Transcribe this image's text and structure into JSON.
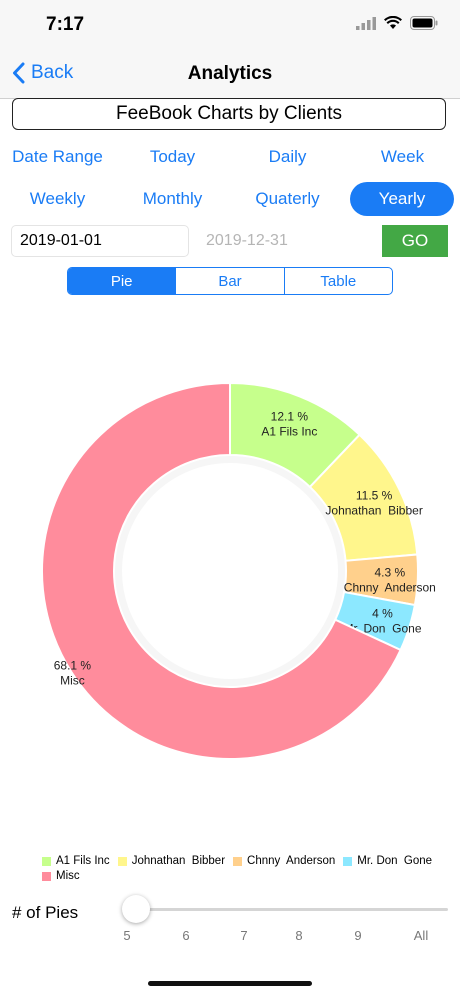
{
  "status": {
    "time": "7:17"
  },
  "nav": {
    "back_label": "Back",
    "title": "Analytics"
  },
  "title_box": "FeeBook Charts by Clients",
  "ranges": {
    "row1": [
      "Date Range",
      "Today",
      "Daily",
      "Week"
    ],
    "row2": [
      "Weekly",
      "Monthly",
      "Quaterly",
      "Yearly"
    ],
    "selected": "Yearly"
  },
  "dates": {
    "start_value": "2019-01-01",
    "end_placeholder": "2019-12-31",
    "go_label": "GO"
  },
  "segments": {
    "items": [
      "Pie",
      "Bar",
      "Table"
    ],
    "selected": "Pie"
  },
  "chart_data": {
    "type": "pie",
    "donut": true,
    "slices": [
      {
        "label": "A1 Fils Inc",
        "percent": 12.1,
        "color": "#c6ff8c"
      },
      {
        "label": "Johnathan  Bibber",
        "percent": 11.5,
        "color": "#fff68c"
      },
      {
        "label": "Chnny  Anderson",
        "percent": 4.3,
        "color": "#ffd08c"
      },
      {
        "label": "Mr. Don  Gone",
        "percent": 4.0,
        "color": "#8ce8ff"
      },
      {
        "label": "Misc",
        "percent": 68.1,
        "color": "#ff8c9c"
      }
    ],
    "legend_position": "bottom-left"
  },
  "slider": {
    "label": "# of Pies",
    "ticks": [
      "5",
      "6",
      "7",
      "8",
      "9",
      "All"
    ],
    "value": "5"
  },
  "colors": {
    "accent": "#1a7cf5",
    "go_button": "#43a845"
  }
}
